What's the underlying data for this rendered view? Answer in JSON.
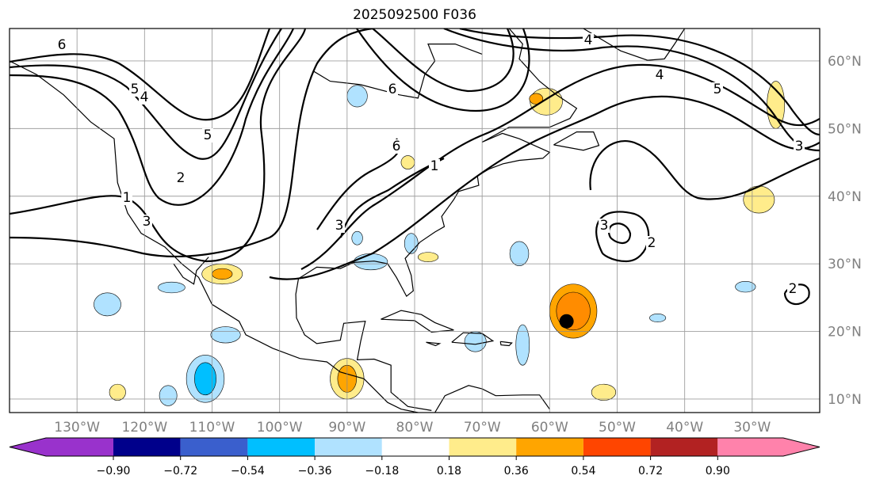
{
  "title": "2025092500 F036",
  "map": {
    "lat_labels": [
      "60°N",
      "50°N",
      "40°N",
      "30°N",
      "20°N",
      "10°N"
    ],
    "lat_values": [
      60,
      50,
      40,
      30,
      20,
      10
    ],
    "lon_labels": [
      "130°W",
      "120°W",
      "110°W",
      "100°W",
      "90°W",
      "80°W",
      "70°W",
      "60°W",
      "50°W",
      "40°W",
      "30°W"
    ],
    "lon_values": [
      -130,
      -120,
      -110,
      -100,
      -90,
      -80,
      -70,
      -60,
      -50,
      -40,
      -30
    ],
    "extent": {
      "lon_min": -140,
      "lon_max": -20,
      "lat_min": 8,
      "lat_max": 64.8
    },
    "contour_labels": [
      "6",
      "5",
      "4",
      "3",
      "2",
      "1",
      "6",
      "5",
      "4",
      "3",
      "2",
      "1",
      "3",
      "4",
      "5",
      "6",
      "2",
      "3"
    ],
    "storm_marker": {
      "lon": -57.5,
      "lat": 21.5
    }
  },
  "colorbar": {
    "ticks": [
      "−0.90",
      "−0.72",
      "−0.54",
      "−0.36",
      "−0.18",
      "0.18",
      "0.36",
      "0.54",
      "0.72",
      "0.90"
    ],
    "colors": [
      "#9932CC",
      "#00008B",
      "#3A5FCD",
      "#00BFFF",
      "#B0E2FF",
      "#FFFFFF",
      "#FFEC8B",
      "#FFA500",
      "#FF4500",
      "#B22222",
      "#FF82AB"
    ]
  }
}
